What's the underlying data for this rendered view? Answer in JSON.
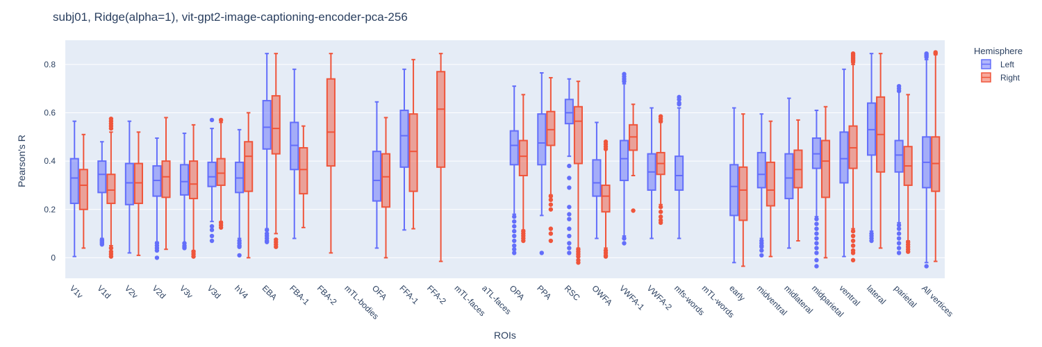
{
  "chart_data": {
    "type": "box",
    "title": "subj01, Ridge(alpha=1), vit-gpt2-image-captioning-encoder-pca-256",
    "xlabel": "ROIs",
    "ylabel": "Pearson's R",
    "ylim": [
      -0.085,
      0.9
    ],
    "yticks": [
      0,
      0.2,
      0.4,
      0.6,
      0.8
    ],
    "ytick_labels": [
      "0",
      "0.2",
      "0.4",
      "0.6",
      "0.8"
    ],
    "grid": true,
    "legend": {
      "title": "Hemisphere",
      "placement": "top-right outside"
    },
    "categories": [
      "V1v",
      "V1d",
      "V2v",
      "V2d",
      "V3v",
      "V3d",
      "hV4",
      "EBA",
      "FBA-1",
      "FBA-2",
      "mTL-bodies",
      "OFA",
      "FFA-1",
      "FFA-2",
      "mTL-faces",
      "aTL-faces",
      "OPA",
      "PPA",
      "RSC",
      "OWFA",
      "VWFA-1",
      "VWFA-2",
      "mfs-words",
      "mTL-words",
      "early",
      "midventral",
      "midlateral",
      "midparietal",
      "ventral",
      "lateral",
      "parietal",
      "All vertices"
    ],
    "series": [
      {
        "name": "Left",
        "color": "#636efa",
        "boxes": [
          {
            "category": "V1v",
            "min": 0.005,
            "q1": 0.225,
            "median": 0.33,
            "q3": 0.41,
            "max": 0.565,
            "outliers": []
          },
          {
            "category": "V1d",
            "min": 0.08,
            "q1": 0.27,
            "median": 0.345,
            "q3": 0.4,
            "max": 0.48,
            "outliers": [
              0.075,
              0.07,
              0.065,
              0.06,
              0.055
            ]
          },
          {
            "category": "V2v",
            "min": 0.02,
            "q1": 0.22,
            "median": 0.31,
            "q3": 0.39,
            "max": 0.565,
            "outliers": []
          },
          {
            "category": "V2d",
            "min": 0.065,
            "q1": 0.255,
            "median": 0.32,
            "q3": 0.38,
            "max": 0.495,
            "outliers": [
              0.06,
              0.05,
              0.04,
              0.03,
              0.0
            ]
          },
          {
            "category": "V3v",
            "min": 0.06,
            "q1": 0.26,
            "median": 0.315,
            "q3": 0.385,
            "max": 0.515,
            "outliers": [
              0.06,
              0.05,
              0.045,
              0.04
            ]
          },
          {
            "category": "V3d",
            "min": 0.15,
            "q1": 0.295,
            "median": 0.335,
            "q3": 0.395,
            "max": 0.535,
            "outliers": [
              0.57,
              0.13,
              0.115,
              0.09,
              0.07
            ]
          },
          {
            "category": "hV4",
            "min": 0.08,
            "q1": 0.27,
            "median": 0.33,
            "q3": 0.395,
            "max": 0.53,
            "outliers": [
              0.07,
              0.06,
              0.05,
              0.045,
              0.01
            ]
          },
          {
            "category": "EBA",
            "min": 0.12,
            "q1": 0.45,
            "median": 0.54,
            "q3": 0.65,
            "max": 0.845,
            "outliers": [
              0.115,
              0.1,
              0.09,
              0.08,
              0.07,
              0.065
            ]
          },
          {
            "category": "FBA-1",
            "min": 0.08,
            "q1": 0.365,
            "median": 0.465,
            "q3": 0.56,
            "max": 0.78,
            "outliers": []
          },
          {
            "category": "FBA-2",
            "min": null,
            "q1": null,
            "median": null,
            "q3": null,
            "max": null,
            "outliers": []
          },
          {
            "category": "mTL-bodies",
            "min": null,
            "q1": null,
            "median": null,
            "q3": null,
            "max": null,
            "outliers": []
          },
          {
            "category": "OFA",
            "min": 0.04,
            "q1": 0.235,
            "median": 0.32,
            "q3": 0.44,
            "max": 0.645,
            "outliers": []
          },
          {
            "category": "FFA-1",
            "min": 0.115,
            "q1": 0.375,
            "median": 0.505,
            "q3": 0.61,
            "max": 0.78,
            "outliers": []
          },
          {
            "category": "FFA-2",
            "min": null,
            "q1": null,
            "median": null,
            "q3": null,
            "max": null,
            "outliers": []
          },
          {
            "category": "mTL-faces",
            "min": null,
            "q1": null,
            "median": null,
            "q3": null,
            "max": null,
            "outliers": []
          },
          {
            "category": "aTL-faces",
            "min": null,
            "q1": null,
            "median": null,
            "q3": null,
            "max": null,
            "outliers": []
          },
          {
            "category": "OPA",
            "min": 0.18,
            "q1": 0.385,
            "median": 0.465,
            "q3": 0.525,
            "max": 0.71,
            "outliers": [
              0.17,
              0.15,
              0.13,
              0.11,
              0.09,
              0.07,
              0.05,
              0.035,
              0.02
            ]
          },
          {
            "category": "PPA",
            "min": 0.175,
            "q1": 0.385,
            "median": 0.475,
            "q3": 0.595,
            "max": 0.765,
            "outliers": [
              0.02
            ]
          },
          {
            "category": "RSC",
            "min": 0.42,
            "q1": 0.555,
            "median": 0.6,
            "q3": 0.655,
            "max": 0.74,
            "outliers": [
              0.38,
              0.33,
              0.29,
              0.21,
              0.18,
              0.16,
              0.12,
              0.09,
              0.06,
              0.04,
              0.02
            ]
          },
          {
            "category": "OWFA",
            "min": 0.08,
            "q1": 0.255,
            "median": 0.31,
            "q3": 0.405,
            "max": 0.56,
            "outliers": []
          },
          {
            "category": "VWFA-1",
            "min": 0.09,
            "q1": 0.32,
            "median": 0.41,
            "q3": 0.485,
            "max": 0.72,
            "outliers": [
              0.76,
              0.75,
              0.74,
              0.73,
              0.08,
              0.06
            ]
          },
          {
            "category": "VWFA-2",
            "min": 0.08,
            "q1": 0.28,
            "median": 0.355,
            "q3": 0.43,
            "max": 0.62,
            "outliers": []
          },
          {
            "category": "mfs-words",
            "min": 0.08,
            "q1": 0.28,
            "median": 0.34,
            "q3": 0.42,
            "max": 0.62,
            "outliers": [
              0.665,
              0.655,
              0.64,
              0.635
            ]
          },
          {
            "category": "mTL-words",
            "min": null,
            "q1": null,
            "median": null,
            "q3": null,
            "max": null,
            "outliers": []
          },
          {
            "category": "early",
            "min": -0.02,
            "q1": 0.175,
            "median": 0.295,
            "q3": 0.385,
            "max": 0.62,
            "outliers": []
          },
          {
            "category": "midventral",
            "min": 0.08,
            "q1": 0.29,
            "median": 0.345,
            "q3": 0.435,
            "max": 0.595,
            "outliers": [
              0.07,
              0.06,
              0.05,
              0.045,
              0.03,
              0.01
            ]
          },
          {
            "category": "midlateral",
            "min": 0.04,
            "q1": 0.245,
            "median": 0.33,
            "q3": 0.43,
            "max": 0.66,
            "outliers": []
          },
          {
            "category": "midparietal",
            "min": 0.17,
            "q1": 0.37,
            "median": 0.43,
            "q3": 0.495,
            "max": 0.61,
            "outliers": [
              0.16,
              0.14,
              0.12,
              0.1,
              0.08,
              0.06,
              0.04,
              0.02,
              -0.01,
              -0.035
            ]
          },
          {
            "category": "ventral",
            "min": 0.005,
            "q1": 0.31,
            "median": 0.41,
            "q3": 0.52,
            "max": 0.78,
            "outliers": []
          },
          {
            "category": "lateral",
            "min": 0.11,
            "q1": 0.425,
            "median": 0.53,
            "q3": 0.64,
            "max": 0.845,
            "outliers": [
              0.1,
              0.09,
              0.08,
              0.07
            ]
          },
          {
            "category": "parietal",
            "min": 0.145,
            "q1": 0.355,
            "median": 0.425,
            "q3": 0.485,
            "max": 0.69,
            "outliers": [
              0.71,
              0.7,
              0.69,
              0.135,
              0.12,
              0.1,
              0.08,
              0.06,
              0.04,
              0.02
            ]
          },
          {
            "category": "All vertices",
            "min": -0.02,
            "q1": 0.29,
            "median": 0.395,
            "q3": 0.5,
            "max": 0.82,
            "outliers": [
              0.845,
              0.84,
              0.835,
              0.83,
              -0.035
            ]
          }
        ]
      },
      {
        "name": "Right",
        "color": "#ef553b",
        "boxes": [
          {
            "category": "V1v",
            "min": 0.04,
            "q1": 0.2,
            "median": 0.3,
            "q3": 0.365,
            "max": 0.51,
            "outliers": []
          },
          {
            "category": "V1d",
            "min": 0.05,
            "q1": 0.225,
            "median": 0.28,
            "q3": 0.345,
            "max": 0.52,
            "outliers": [
              0.575,
              0.565,
              0.555,
              0.545,
              0.535,
              0.04,
              0.025,
              0.015,
              0.005
            ]
          },
          {
            "category": "V2v",
            "min": 0.01,
            "q1": 0.225,
            "median": 0.31,
            "q3": 0.39,
            "max": 0.52,
            "outliers": []
          },
          {
            "category": "V2d",
            "min": 0.035,
            "q1": 0.25,
            "median": 0.335,
            "q3": 0.4,
            "max": 0.58,
            "outliers": []
          },
          {
            "category": "V3v",
            "min": 0.03,
            "q1": 0.245,
            "median": 0.305,
            "q3": 0.4,
            "max": 0.55,
            "outliers": [
              0.025,
              0.015,
              0.005
            ]
          },
          {
            "category": "V3d",
            "min": 0.15,
            "q1": 0.3,
            "median": 0.35,
            "q3": 0.41,
            "max": 0.56,
            "outliers": [
              0.57,
              0.145,
              0.135,
              0.125
            ]
          },
          {
            "category": "hV4",
            "min": 0.0,
            "q1": 0.275,
            "median": 0.42,
            "q3": 0.48,
            "max": 0.6,
            "outliers": []
          },
          {
            "category": "EBA",
            "min": 0.1,
            "q1": 0.43,
            "median": 0.535,
            "q3": 0.67,
            "max": 0.845,
            "outliers": [
              0.075,
              0.065,
              0.055,
              0.045
            ]
          },
          {
            "category": "FBA-1",
            "min": 0.125,
            "q1": 0.265,
            "median": 0.365,
            "q3": 0.455,
            "max": 0.545,
            "outliers": []
          },
          {
            "category": "FBA-2",
            "min": 0.02,
            "q1": 0.38,
            "median": 0.52,
            "q3": 0.74,
            "max": 0.845,
            "outliers": []
          },
          {
            "category": "mTL-bodies",
            "min": null,
            "q1": null,
            "median": null,
            "q3": null,
            "max": null,
            "outliers": []
          },
          {
            "category": "OFA",
            "min": 0.0,
            "q1": 0.21,
            "median": 0.335,
            "q3": 0.43,
            "max": 0.58,
            "outliers": []
          },
          {
            "category": "FFA-1",
            "min": 0.12,
            "q1": 0.275,
            "median": 0.44,
            "q3": 0.595,
            "max": 0.82,
            "outliers": []
          },
          {
            "category": "FFA-2",
            "min": -0.015,
            "q1": 0.375,
            "median": 0.615,
            "q3": 0.77,
            "max": 0.845,
            "outliers": []
          },
          {
            "category": "mTL-faces",
            "min": null,
            "q1": null,
            "median": null,
            "q3": null,
            "max": null,
            "outliers": []
          },
          {
            "category": "aTL-faces",
            "min": null,
            "q1": null,
            "median": null,
            "q3": null,
            "max": null,
            "outliers": []
          },
          {
            "category": "OPA",
            "min": 0.115,
            "q1": 0.34,
            "median": 0.42,
            "q3": 0.485,
            "max": 0.675,
            "outliers": [
              0.11,
              0.1,
              0.09,
              0.08,
              0.07
            ]
          },
          {
            "category": "PPA",
            "min": 0.26,
            "q1": 0.465,
            "median": 0.53,
            "q3": 0.605,
            "max": 0.745,
            "outliers": [
              0.255,
              0.24,
              0.22,
              0.2,
              0.12,
              0.1,
              0.07
            ]
          },
          {
            "category": "RSC",
            "min": 0.04,
            "q1": 0.39,
            "median": 0.565,
            "q3": 0.625,
            "max": 0.73,
            "outliers": [
              0.035,
              0.025,
              0.015,
              0.005,
              -0.01,
              -0.02
            ]
          },
          {
            "category": "OWFA",
            "min": 0.04,
            "q1": 0.19,
            "median": 0.255,
            "q3": 0.3,
            "max": 0.46,
            "outliers": [
              0.48,
              0.47,
              0.46,
              0.45,
              0.03,
              0.02,
              0.01,
              0.005
            ]
          },
          {
            "category": "VWFA-1",
            "min": 0.34,
            "q1": 0.445,
            "median": 0.5,
            "q3": 0.55,
            "max": 0.635,
            "outliers": [
              0.195
            ]
          },
          {
            "category": "VWFA-2",
            "min": 0.22,
            "q1": 0.345,
            "median": 0.39,
            "q3": 0.435,
            "max": 0.56,
            "outliers": [
              0.585,
              0.575,
              0.565,
              0.21,
              0.19,
              0.17,
              0.155,
              0.145
            ]
          },
          {
            "category": "mfs-words",
            "min": null,
            "q1": null,
            "median": null,
            "q3": null,
            "max": null,
            "outliers": []
          },
          {
            "category": "mTL-words",
            "min": null,
            "q1": null,
            "median": null,
            "q3": null,
            "max": null,
            "outliers": []
          },
          {
            "category": "early",
            "min": -0.035,
            "q1": 0.155,
            "median": 0.28,
            "q3": 0.375,
            "max": 0.595,
            "outliers": []
          },
          {
            "category": "midventral",
            "min": 0.005,
            "q1": 0.215,
            "median": 0.28,
            "q3": 0.395,
            "max": 0.565,
            "outliers": []
          },
          {
            "category": "midlateral",
            "min": 0.07,
            "q1": 0.29,
            "median": 0.365,
            "q3": 0.445,
            "max": 0.57,
            "outliers": []
          },
          {
            "category": "midparietal",
            "min": 0.0,
            "q1": 0.25,
            "median": 0.4,
            "q3": 0.485,
            "max": 0.625,
            "outliers": []
          },
          {
            "category": "ventral",
            "min": 0.12,
            "q1": 0.37,
            "median": 0.455,
            "q3": 0.545,
            "max": 0.8,
            "outliers": [
              0.845,
              0.84,
              0.835,
              0.83,
              0.825,
              0.82,
              0.815,
              0.81,
              0.11,
              0.09,
              0.07,
              0.05,
              0.03,
              0.02,
              -0.01
            ]
          },
          {
            "category": "lateral",
            "min": 0.04,
            "q1": 0.355,
            "median": 0.51,
            "q3": 0.665,
            "max": 0.845,
            "outliers": []
          },
          {
            "category": "parietal",
            "min": 0.07,
            "q1": 0.3,
            "median": 0.38,
            "q3": 0.46,
            "max": 0.675,
            "outliers": [
              0.065,
              0.055,
              0.045,
              0.035,
              0.025
            ]
          },
          {
            "category": "All vertices",
            "min": -0.015,
            "q1": 0.275,
            "median": 0.39,
            "q3": 0.5,
            "max": 0.84,
            "outliers": [
              0.85,
              0.845
            ]
          }
        ]
      }
    ]
  }
}
